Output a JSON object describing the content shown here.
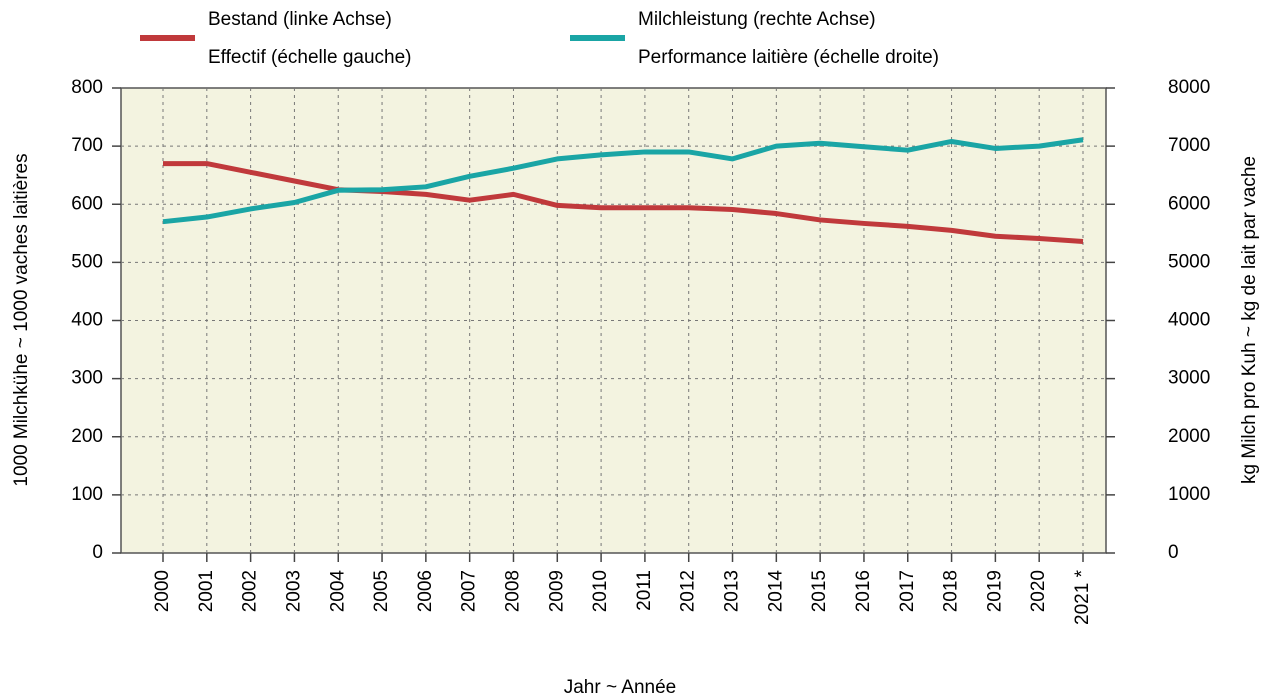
{
  "chart_data": {
    "type": "line",
    "x_label": "Jahr  ~  Année",
    "y_label": "1000 Milchkühe  ~  1000 vaches laitières",
    "y2_label": "kg Milch pro Kuh  ~  kg de lait par vache",
    "categories": [
      "2000",
      "2001",
      "2002",
      "2003",
      "2004",
      "2005",
      "2006",
      "2007",
      "2008",
      "2009",
      "2010",
      "2011",
      "2012",
      "2013",
      "2014",
      "2015",
      "2016",
      "2017",
      "2018",
      "2019",
      "2020",
      "2021 *"
    ],
    "series": [
      {
        "name": [
          "Bestand (linke Achse)",
          "Effectif (échelle gauche)"
        ],
        "color": "#c0393b",
        "values": [
          670,
          670,
          655,
          640,
          625,
          622,
          617,
          607,
          617,
          598,
          594,
          594,
          594,
          591,
          584,
          573,
          567,
          562,
          555,
          545,
          541,
          536
        ]
      },
      {
        "name": [
          "Milchleistung (rechte Achse)",
          "Performance laitière (échelle droite)"
        ],
        "color": "#1aa5a5",
        "axis": "y2",
        "values": [
          5700,
          5780,
          5920,
          6030,
          6240,
          6250,
          6300,
          6480,
          6620,
          6780,
          6850,
          6900,
          6900,
          6780,
          7000,
          7050,
          6990,
          6930,
          7080,
          6960,
          7000,
          7110
        ]
      }
    ],
    "ylim": [
      0,
      800
    ],
    "yticks": [
      0,
      100,
      200,
      300,
      400,
      500,
      600,
      700,
      800
    ],
    "y2lim": [
      0,
      8000
    ],
    "y2ticks": [
      0,
      1000,
      2000,
      3000,
      4000,
      5000,
      6000,
      7000,
      8000
    ],
    "grid": true,
    "background": "#f3f3e0"
  }
}
